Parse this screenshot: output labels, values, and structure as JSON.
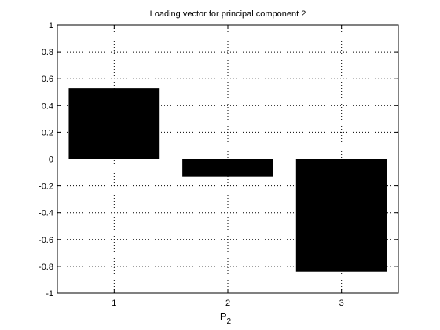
{
  "chart_data": {
    "type": "bar",
    "title": "Loading vector for principal component 2",
    "xlabel": {
      "main": "P",
      "sub": "2"
    },
    "ylabel": "",
    "categories": [
      "1",
      "2",
      "3"
    ],
    "values": [
      0.53,
      -0.13,
      -0.84
    ],
    "xlim": [
      0.5,
      3.5
    ],
    "ylim": [
      -1,
      1
    ],
    "yticks": [
      "-1",
      "-0.8",
      "-0.6",
      "-0.4",
      "-0.2",
      "0",
      "0.2",
      "0.4",
      "0.6",
      "0.8",
      "1"
    ],
    "grid": true,
    "legend": "none",
    "bar_color": "#000000",
    "grid_color": "#000000"
  }
}
